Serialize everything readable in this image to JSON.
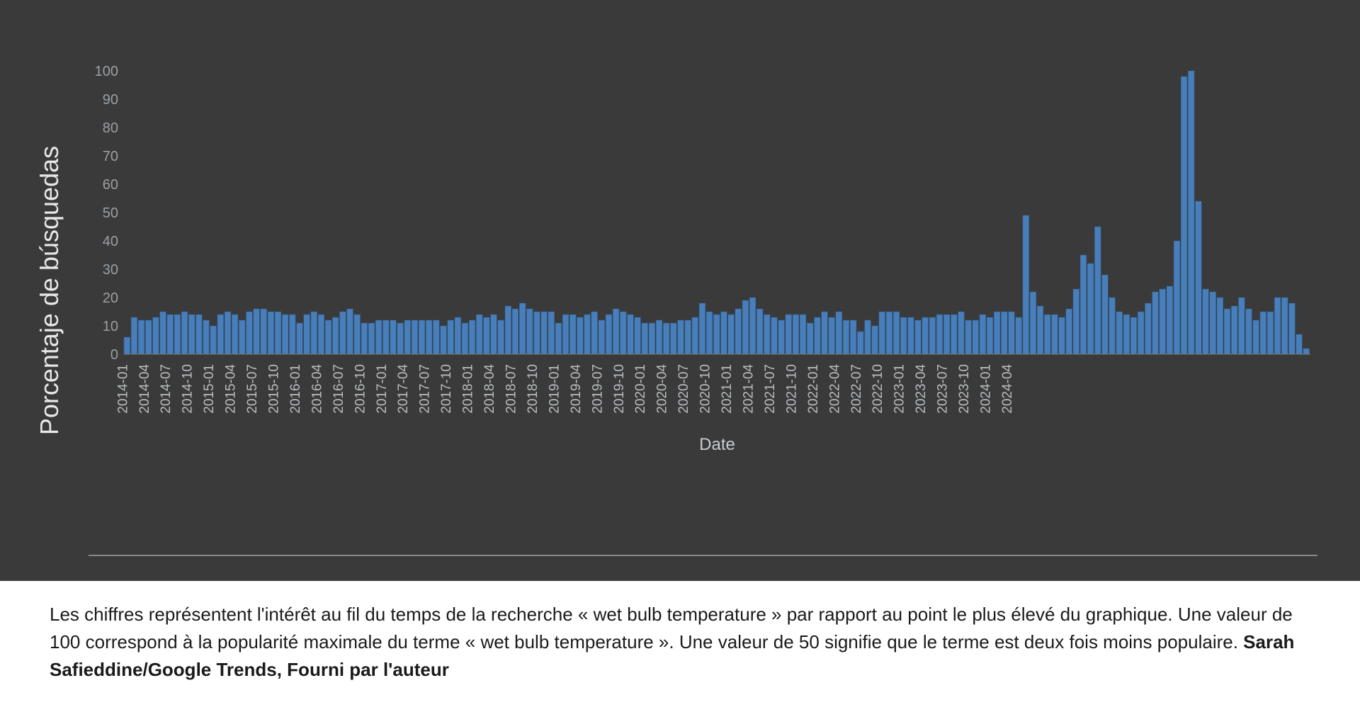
{
  "chart": {
    "type": "bar",
    "background_color": "#3a3a3a",
    "bar_color": "#4a84c4",
    "bar_edge_color": "#2e5f95",
    "bar_opacity": 0.92,
    "grid_color": "#555555",
    "tick_label_color": "#9aa0a5",
    "ylabel": "Porcentaje de búsquedas",
    "ylabel_fontsize": 36,
    "xlabel": "Date",
    "xlabel_fontsize": 24,
    "ylim": [
      0,
      100
    ],
    "ytick_step": 10,
    "yticks": [
      0,
      10,
      20,
      30,
      40,
      50,
      60,
      70,
      80,
      90,
      100
    ],
    "x_tick_labels": [
      "2014-01",
      "2014-04",
      "2014-07",
      "2014-10",
      "2015-01",
      "2015-04",
      "2015-07",
      "2015-10",
      "2016-01",
      "2016-04",
      "2016-07",
      "2016-10",
      "2017-01",
      "2017-04",
      "2017-07",
      "2017-10",
      "2018-01",
      "2018-04",
      "2018-07",
      "2018-10",
      "2019-01",
      "2019-04",
      "2019-07",
      "2019-10",
      "2020-01",
      "2020-04",
      "2020-07",
      "2020-10",
      "2021-01",
      "2021-04",
      "2021-07",
      "2021-10",
      "2022-01",
      "2022-04",
      "2022-07",
      "2022-10",
      "2023-01",
      "2023-04",
      "2023-07",
      "2023-10",
      "2024-01",
      "2024-04"
    ],
    "x_tick_stride": 3,
    "values": [
      6,
      13,
      12,
      12,
      13,
      15,
      14,
      14,
      15,
      14,
      14,
      12,
      10,
      14,
      15,
      14,
      12,
      15,
      16,
      16,
      15,
      15,
      14,
      14,
      11,
      14,
      15,
      14,
      12,
      13,
      15,
      16,
      14,
      11,
      11,
      12,
      12,
      12,
      11,
      12,
      12,
      12,
      12,
      12,
      10,
      12,
      13,
      11,
      12,
      14,
      13,
      14,
      12,
      17,
      16,
      18,
      16,
      15,
      15,
      15,
      11,
      14,
      14,
      13,
      14,
      15,
      12,
      14,
      16,
      15,
      14,
      13,
      11,
      11,
      12,
      11,
      11,
      12,
      12,
      13,
      18,
      15,
      14,
      15,
      14,
      16,
      19,
      20,
      16,
      14,
      13,
      12,
      14,
      14,
      14,
      11,
      13,
      15,
      13,
      15,
      12,
      12,
      8,
      12,
      10,
      15,
      15,
      15,
      13,
      13,
      12,
      13,
      13,
      14,
      14,
      14,
      15,
      12,
      12,
      14,
      13,
      15,
      15,
      15,
      13,
      49,
      22,
      17,
      14,
      14,
      13,
      16,
      23,
      35,
      32,
      45,
      28,
      20,
      15,
      14,
      13,
      15,
      18,
      22,
      23,
      24,
      40,
      98,
      100,
      54,
      23,
      22,
      20,
      16,
      17,
      20,
      16,
      12,
      15,
      15,
      20,
      20,
      18,
      7,
      2
    ]
  },
  "caption": {
    "text_part1": "Les chiffres représentent l'intérêt au fil du temps de la recherche « wet bulb temperature » par rapport au point le plus élevé du graphique. Une valeur de 100 correspond à la popularité maximale du terme « wet bulb temperature ». Une valeur de 50 signifie que le terme est deux fois moins populaire. ",
    "attribution1": "Sarah Safieddine/Google Trends,",
    "attribution2": " Fourni par l'auteur"
  }
}
